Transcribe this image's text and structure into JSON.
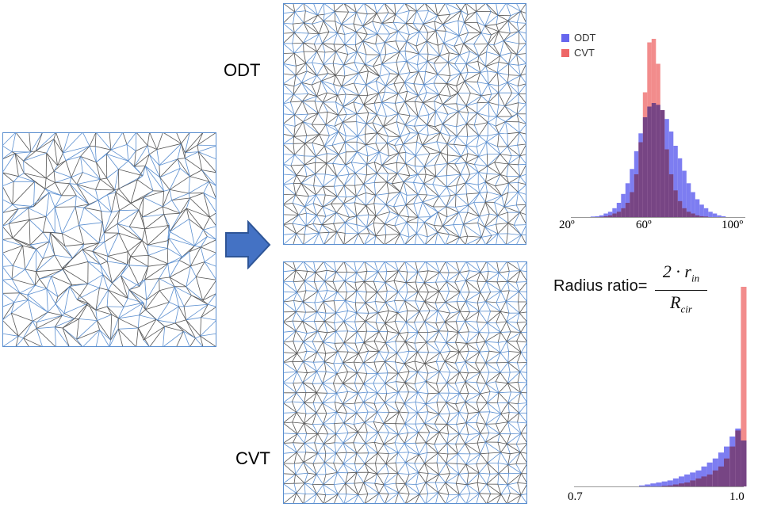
{
  "labels": {
    "odt": "ODT",
    "cvt": "CVT"
  },
  "arrow": {
    "icon": "right-arrow-icon",
    "color": "#4472c4",
    "stroke": "#2e5597"
  },
  "mesh_colors": {
    "edge_dark": "#555555",
    "edge_blue": "#5b8fd0"
  },
  "angle_histogram": {
    "legend": [
      "ODT",
      "CVT"
    ],
    "ticks": [
      "20º",
      "60º",
      "100º"
    ]
  },
  "radius_histogram": {
    "formula_label": "Radius ratio=",
    "numerator": "2 · r",
    "numerator_sub": "in",
    "denominator": "R",
    "denominator_sub": "cir",
    "ticks": [
      "0.7",
      "1.0"
    ]
  },
  "chart_data": [
    {
      "type": "bar",
      "title": "",
      "xlabel": "",
      "ylabel": "",
      "xlim": [
        20,
        100
      ],
      "x_tick_labels": [
        "20º",
        "60º",
        "100º"
      ],
      "legend_placement": "top-left",
      "x": [
        30,
        32,
        34,
        36,
        38,
        40,
        42,
        44,
        46,
        48,
        50,
        52,
        54,
        56,
        58,
        60,
        62,
        64,
        66,
        68,
        70,
        72,
        74,
        76,
        78,
        80,
        82,
        84,
        86,
        88,
        90
      ],
      "series": [
        {
          "name": "ODT",
          "color": "#6666ee",
          "values": [
            0.3,
            0.5,
            1,
            2,
            3,
            5,
            8,
            13,
            19,
            27,
            37,
            47,
            56,
            62,
            64,
            63,
            60,
            55,
            48,
            40,
            33,
            26,
            19,
            14,
            10,
            7,
            5,
            3,
            2,
            1,
            0.5
          ]
        },
        {
          "name": "CVT",
          "color": "#ee6666",
          "values": [
            0,
            0,
            0.2,
            0.5,
            1,
            2,
            3,
            5,
            8,
            14,
            24,
            42,
            70,
            98,
            100,
            86,
            60,
            38,
            24,
            15,
            9,
            5,
            3,
            2,
            1,
            0.5,
            0.3,
            0,
            0,
            0,
            0
          ]
        }
      ]
    },
    {
      "type": "bar",
      "title": "",
      "xlabel": "",
      "ylabel": "",
      "xlim": [
        0.7,
        1.0
      ],
      "x_tick_labels": [
        "0.7",
        "1.0"
      ],
      "x": [
        0.82,
        0.83,
        0.84,
        0.85,
        0.86,
        0.87,
        0.88,
        0.89,
        0.9,
        0.91,
        0.92,
        0.93,
        0.94,
        0.95,
        0.96,
        0.97,
        0.98,
        0.99,
        1.0
      ],
      "series": [
        {
          "name": "ODT",
          "color": "#6666ee",
          "values": [
            0.5,
            1,
            1.5,
            2,
            2.5,
            3,
            4,
            5,
            6,
            7,
            8,
            10,
            12,
            14,
            17,
            20,
            25,
            29,
            23
          ]
        },
        {
          "name": "CVT",
          "color": "#ee6666",
          "values": [
            0,
            0,
            0,
            0,
            0.3,
            0.5,
            1,
            1.5,
            2,
            3,
            4,
            5,
            6,
            8,
            10,
            14,
            20,
            28,
            100
          ]
        }
      ]
    }
  ]
}
